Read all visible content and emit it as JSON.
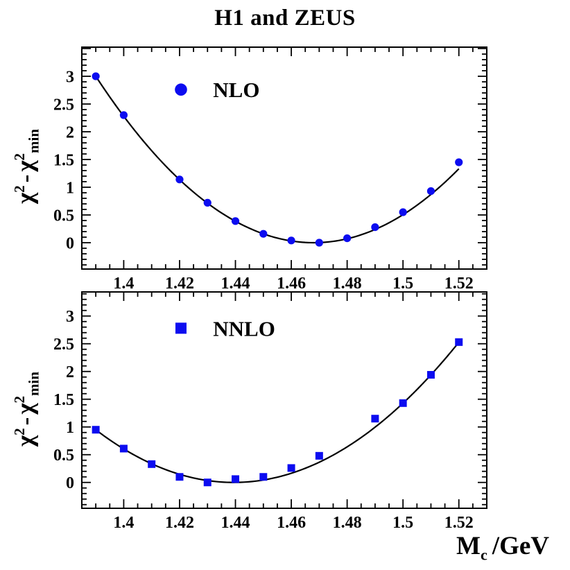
{
  "title": "H1 and ZEUS",
  "ylabel": {
    "chi": "χ",
    "exp": "2",
    "minus": "-",
    "sub": "min"
  },
  "xlabel": {
    "symbol": "M",
    "sub": "c",
    "unit": "/GeV"
  },
  "colors": {
    "marker": "#0c0cf0",
    "curve": "#000000",
    "frame": "#000000",
    "background": "#ffffff"
  },
  "chart_data": [
    {
      "type": "scatter",
      "panel": "top",
      "legend": {
        "label": "NLO",
        "marker": "circle"
      },
      "x": [
        1.39,
        1.4,
        1.42,
        1.43,
        1.44,
        1.45,
        1.46,
        1.47,
        1.48,
        1.49,
        1.5,
        1.51,
        1.52
      ],
      "y": [
        3.0,
        2.3,
        1.14,
        0.72,
        0.39,
        0.16,
        0.04,
        0.0,
        0.08,
        0.28,
        0.55,
        0.93,
        1.45
      ],
      "fit_curve": {
        "form": "a*(x-x0)^2",
        "a": 493,
        "x0": 1.468,
        "x_start": 1.39,
        "x_end": 1.52
      },
      "xlim": [
        1.385,
        1.53
      ],
      "ylim": [
        -0.475,
        3.525
      ],
      "x_tick_values": [
        1.4,
        1.42,
        1.44,
        1.46,
        1.48,
        1.5,
        1.52
      ],
      "x_tick_labels": [
        "1.4",
        "1.42",
        "1.44",
        "1.46",
        "1.48",
        "1.5",
        "1.52"
      ],
      "y_tick_values": [
        0,
        0.5,
        1,
        1.5,
        2,
        2.5,
        3
      ],
      "y_tick_labels": [
        "0",
        "0.5",
        "1",
        "1.5",
        "2",
        "2.5",
        "3"
      ],
      "x_minor_step": 0.005,
      "y_major_step": 0.5,
      "y_minor_step": 0.1,
      "grid": false
    },
    {
      "type": "scatter",
      "panel": "bottom",
      "legend": {
        "label": "NNLO",
        "marker": "square"
      },
      "x": [
        1.39,
        1.4,
        1.41,
        1.42,
        1.43,
        1.44,
        1.45,
        1.46,
        1.47,
        1.49,
        1.5,
        1.51,
        1.52
      ],
      "y": [
        0.95,
        0.61,
        0.33,
        0.1,
        0.0,
        0.06,
        0.1,
        0.26,
        0.48,
        1.15,
        1.43,
        1.94,
        2.53
      ],
      "fit_curve": {
        "form": "a*(x-x0)^2",
        "a": 389,
        "x0": 1.4394,
        "x_start": 1.39,
        "x_end": 1.52
      },
      "xlim": [
        1.385,
        1.53
      ],
      "ylim": [
        -0.466,
        3.434
      ],
      "x_tick_values": [
        1.4,
        1.42,
        1.44,
        1.46,
        1.48,
        1.5,
        1.52
      ],
      "x_tick_labels": [
        "1.4",
        "1.42",
        "1.44",
        "1.46",
        "1.48",
        "1.5",
        "1.52"
      ],
      "y_tick_values": [
        0,
        0.5,
        1,
        1.5,
        2,
        2.5,
        3
      ],
      "y_tick_labels": [
        "0",
        "0.5",
        "1",
        "1.5",
        "2",
        "2.5",
        "3"
      ],
      "x_minor_step": 0.005,
      "y_major_step": 0.5,
      "y_minor_step": 0.1,
      "grid": false
    }
  ]
}
